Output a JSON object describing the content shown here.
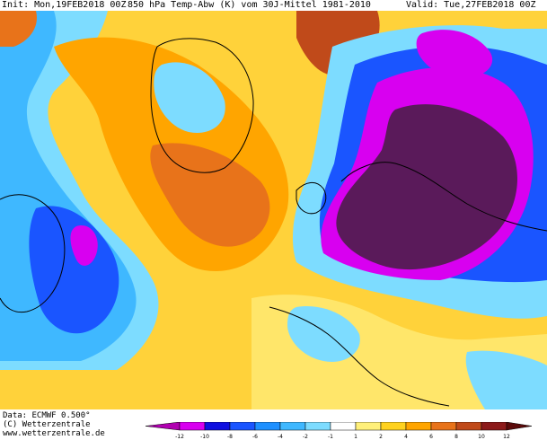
{
  "header": {
    "init": "Init: Mon,19FEB2018 00Z",
    "title": "850 hPa Temp-Abw (K) vom 30J-Mittel 1981-2010",
    "valid": "Valid: Tue,27FEB2018 00Z"
  },
  "footer": {
    "data": "Data: ECMWF  0.500°",
    "copyright": "(C) Wetterzentrale",
    "url": "www.wetterzentrale.de"
  },
  "legend": {
    "labels": [
      "-12",
      "-10",
      "-8",
      "-6",
      "-4",
      "-2",
      "-1",
      "1",
      "2",
      "4",
      "6",
      "8",
      "10",
      "12"
    ],
    "colors": [
      "#b000b0",
      "#d800f0",
      "#1010e0",
      "#1a55ff",
      "#1e90ff",
      "#3fb8ff",
      "#7ddcff",
      "#ffffff",
      "#fff07a",
      "#ffd21f",
      "#ffa500",
      "#e8731a",
      "#c04a1a",
      "#8c1a1a",
      "#5a0a0a"
    ]
  },
  "map": {
    "background_color": "#ffffff",
    "contour_color": "#000000"
  }
}
